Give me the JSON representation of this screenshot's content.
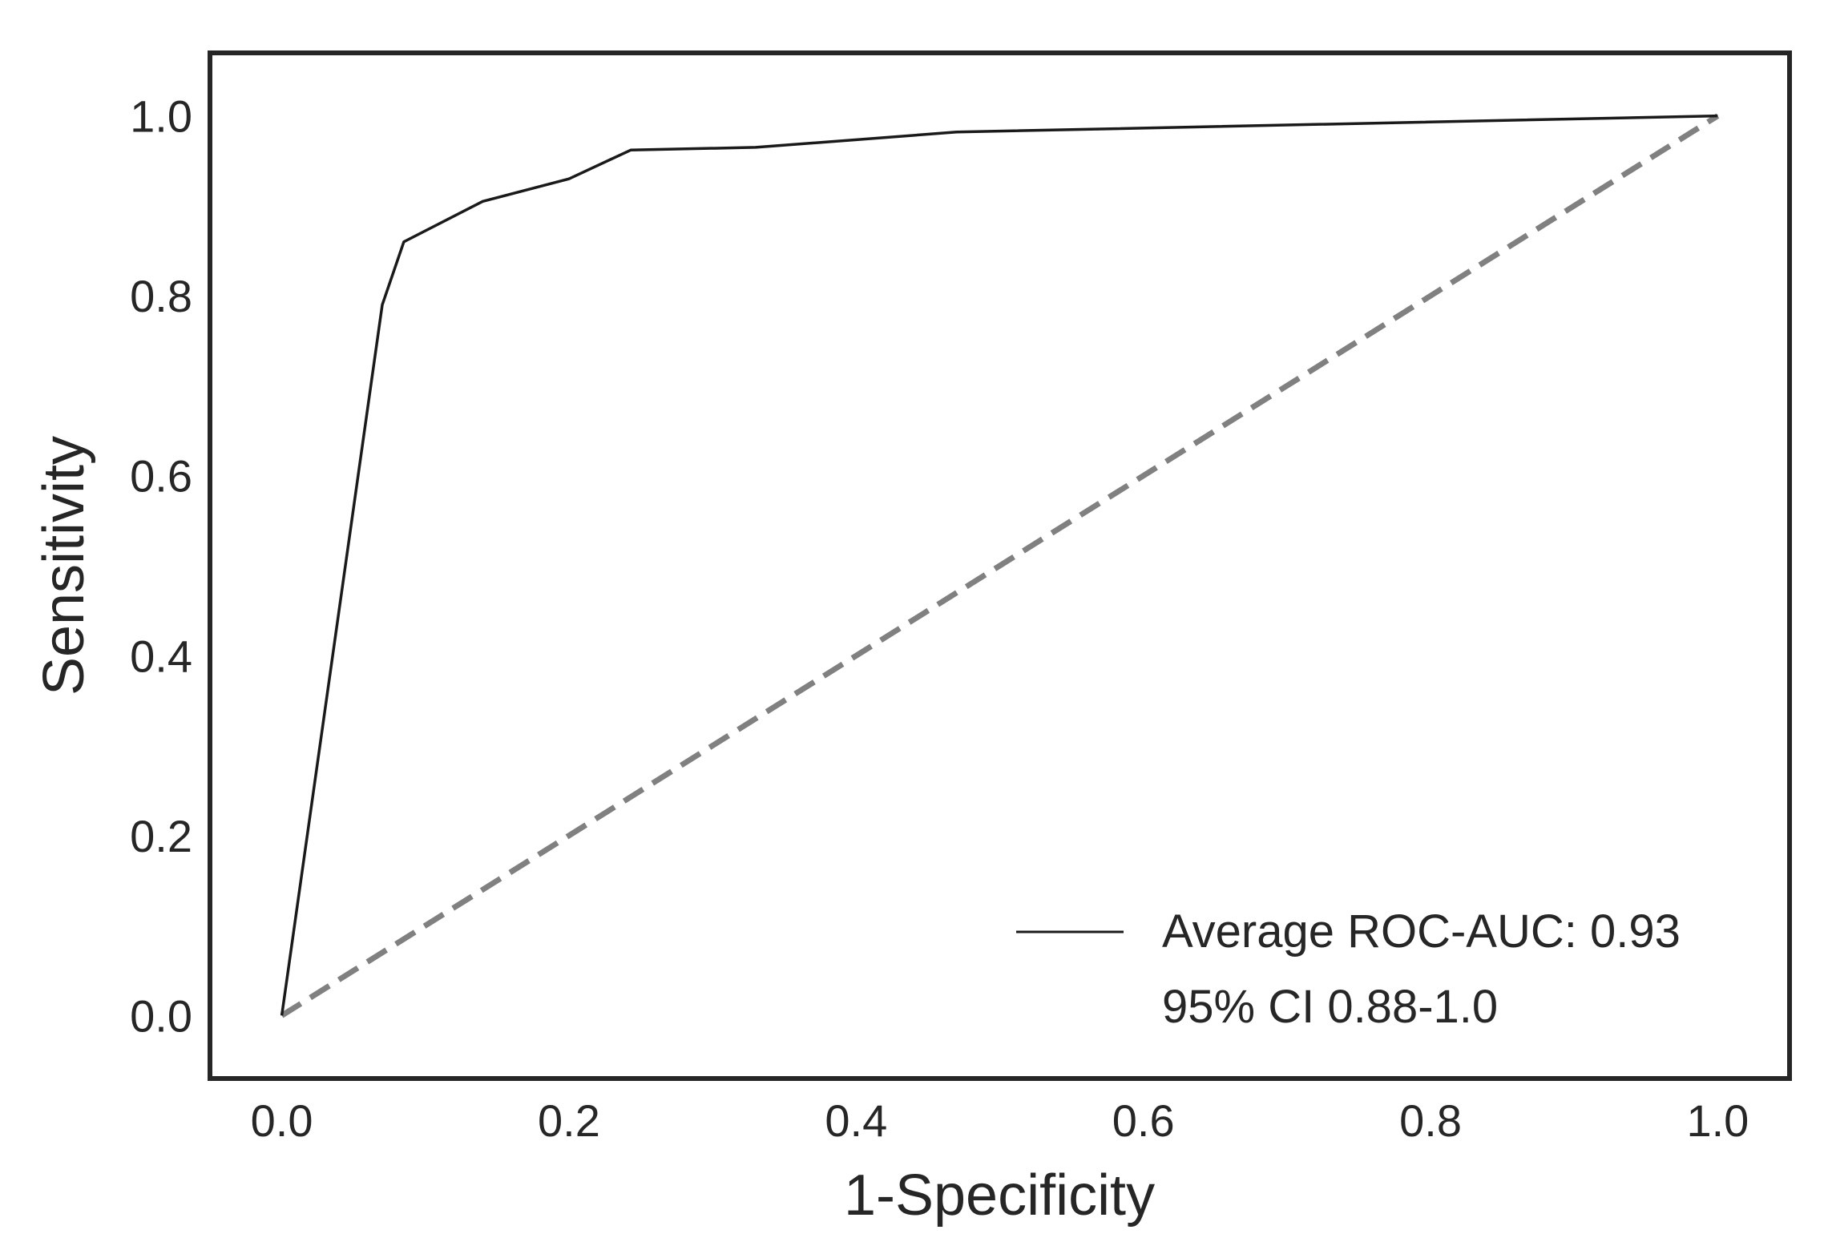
{
  "chart_data": {
    "type": "line",
    "title": "",
    "xlabel": "1-Specificity",
    "ylabel": "Sensitivity",
    "xlim": [
      -0.05,
      1.05
    ],
    "ylim": [
      -0.07,
      1.07
    ],
    "xticks": [
      "0.0",
      "0.2",
      "0.4",
      "0.6",
      "0.8",
      "1.0"
    ],
    "yticks": [
      "0.0",
      "0.2",
      "0.4",
      "0.6",
      "0.8",
      "1.0"
    ],
    "grid": false,
    "legend_position": "bottom-right",
    "series": [
      {
        "name": "Average ROC-AUC: 0.93\n95% CI 0.88-1.0",
        "legend_lines": [
          "Average ROC-AUC: 0.93",
          "95% CI 0.88-1.0"
        ],
        "color": "#1a1a1a",
        "style": "solid",
        "x": [
          0.0,
          0.07,
          0.085,
          0.14,
          0.2,
          0.243,
          0.33,
          0.47,
          1.0
        ],
        "y": [
          0.0,
          0.79,
          0.86,
          0.905,
          0.93,
          0.962,
          0.965,
          0.982,
          1.0
        ]
      },
      {
        "color": "#808080",
        "style": "dashed",
        "x": [
          0.0,
          1.0
        ],
        "y": [
          0.0,
          1.0
        ]
      }
    ]
  }
}
